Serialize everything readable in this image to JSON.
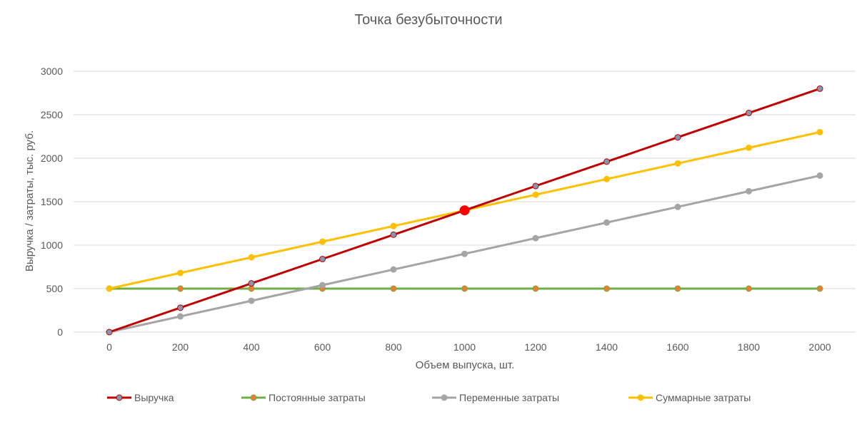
{
  "chart_data": {
    "type": "line",
    "title": "Точка безубыточности",
    "xlabel": "Объем выпуска,  шт.",
    "ylabel": "Выручка / затраты, тыс. руб.",
    "x": [
      0,
      200,
      400,
      600,
      800,
      1000,
      1200,
      1400,
      1600,
      1800,
      2000
    ],
    "x_ticks": [
      "0",
      "200",
      "400",
      "600",
      "800",
      "1000",
      "1200",
      "1400",
      "1600",
      "1800",
      "2000"
    ],
    "ylim": [
      0,
      3000
    ],
    "y_ticks": [
      "0",
      "500",
      "1000",
      "1500",
      "2000",
      "2500",
      "3000"
    ],
    "grid": true,
    "legend_position": "bottom",
    "series": [
      {
        "name": "Выручка",
        "color": "#c00000",
        "marker_color": "#8497b0",
        "values": [
          0,
          280,
          560,
          840,
          1120,
          1400,
          1680,
          1960,
          2240,
          2520,
          2800
        ]
      },
      {
        "name": "Постоянные затраты",
        "color": "#70ad47",
        "marker_color": "#ed7d31",
        "values": [
          500,
          500,
          500,
          500,
          500,
          500,
          500,
          500,
          500,
          500,
          500
        ]
      },
      {
        "name": "Переменные затраты",
        "color": "#a5a5a5",
        "marker_color": "#a5a5a5",
        "values": [
          0,
          180,
          360,
          540,
          720,
          900,
          1080,
          1260,
          1440,
          1620,
          1800
        ]
      },
      {
        "name": "Суммарные затраты",
        "color": "#ffc000",
        "marker_color": "#ffc000",
        "values": [
          500,
          680,
          860,
          1040,
          1220,
          1400,
          1580,
          1760,
          1940,
          2120,
          2300
        ]
      }
    ],
    "annotations": [
      {
        "type": "break-even-point",
        "x": 1000,
        "y": 1400,
        "color": "#ff0000"
      }
    ]
  }
}
